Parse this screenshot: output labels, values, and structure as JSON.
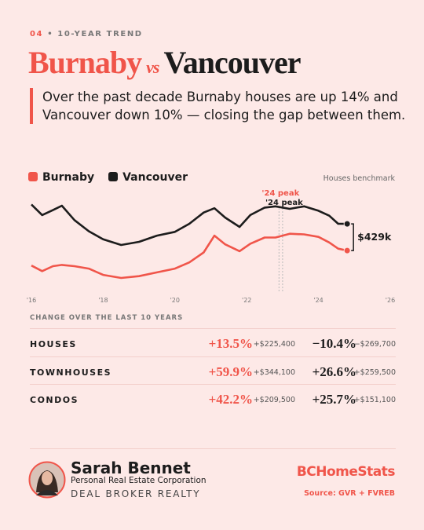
{
  "header": {
    "number": "04",
    "kicker": "10-YEAR TREND",
    "title_a": "Burnaby",
    "title_vs": "vs",
    "title_b": "Vancouver",
    "lede": "Over the past decade Burnaby houses are up 14% and Vancouver down 10% — closing the gap between them."
  },
  "chart_data": {
    "type": "line",
    "subtitle": "Houses benchmark",
    "x": [
      2016.0,
      2016.3,
      2016.6,
      2016.85,
      2017.2,
      2017.6,
      2018.0,
      2018.5,
      2019.0,
      2019.5,
      2020.0,
      2020.4,
      2020.8,
      2021.1,
      2021.4,
      2021.8,
      2022.1,
      2022.5,
      2022.8,
      2023.2,
      2023.6,
      2024.0,
      2024.3,
      2024.55,
      2024.8
    ],
    "series": [
      {
        "name": "Burnaby",
        "color": "#f0554a",
        "values": [
          1750,
          1660,
          1740,
          1760,
          1740,
          1700,
          1600,
          1550,
          1580,
          1640,
          1700,
          1800,
          1960,
          2230,
          2090,
          1980,
          2100,
          2200,
          2200,
          2260,
          2250,
          2210,
          2120,
          2020,
          1990
        ]
      },
      {
        "name": "Vancouver",
        "color": "#1c1c1c",
        "values": [
          2730,
          2560,
          2640,
          2710,
          2480,
          2300,
          2170,
          2080,
          2130,
          2230,
          2290,
          2420,
          2600,
          2670,
          2520,
          2370,
          2560,
          2680,
          2700,
          2660,
          2700,
          2630,
          2550,
          2420,
          2419
        ]
      }
    ],
    "xlim": [
      2016,
      2026
    ],
    "xticks": [
      {
        "value": 2016,
        "label": "'16"
      },
      {
        "value": 2018,
        "label": "'18"
      },
      {
        "value": 2020,
        "label": "'20"
      },
      {
        "value": 2022,
        "label": "'22"
      },
      {
        "value": 2024,
        "label": "'24"
      },
      {
        "value": 2026,
        "label": "'26"
      }
    ],
    "ylim": [
      1500,
      3000
    ],
    "peaks": [
      {
        "label": "'24 peak",
        "x": 2022.9,
        "color": "#f0554a"
      },
      {
        "label": "'24 peak",
        "x": 2023.0,
        "color": "#1c1c1c"
      }
    ],
    "gap": {
      "value": 429,
      "label": "$429k"
    }
  },
  "table": {
    "title": "CHANGE OVER THE LAST 10 YEARS",
    "rows": [
      {
        "label": "HOUSES",
        "burnaby_pct": "+13.5%",
        "burnaby_change": "+$225,400",
        "vancouver_pct": "−10.4%",
        "vancouver_change": "−$269,700"
      },
      {
        "label": "TOWNHOUSES",
        "burnaby_pct": "+59.9%",
        "burnaby_change": "+$344,100",
        "vancouver_pct": "+26.6%",
        "vancouver_change": "+$259,500"
      },
      {
        "label": "CONDOS",
        "burnaby_pct": "+42.2%",
        "burnaby_change": "+$209,500",
        "vancouver_pct": "+25.7%",
        "vancouver_change": "+$151,100"
      }
    ]
  },
  "footer": {
    "name": "Sarah Bennet",
    "corporation": "Personal Real Estate Corporation",
    "brokerage": "DEAL BROKER REALTY",
    "brand": "BCHomeStats",
    "source": "Source: GVR + FVREB"
  }
}
